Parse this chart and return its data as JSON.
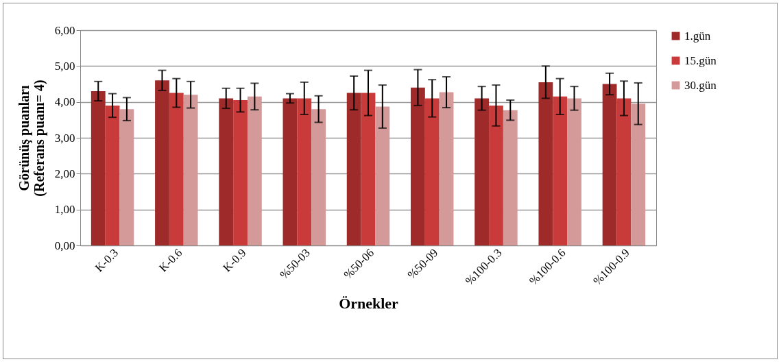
{
  "chart_data": {
    "type": "bar",
    "xlabel": "Örnekler",
    "ylabel": "Görünüş puanları\n(Referans puanı= 4)",
    "categories": [
      "K-0.3",
      "K-0.6",
      "K-0.9",
      "%50-03",
      "%50-06",
      "%50-09",
      "%100-0.3",
      "%100-0.6",
      "%100-0.9"
    ],
    "series": [
      {
        "name": "1.gün",
        "color": "#9e2a2a",
        "values": [
          4.3,
          4.6,
          4.1,
          4.1,
          4.25,
          4.4,
          4.1,
          4.55,
          4.5
        ],
        "errors": [
          0.27,
          0.28,
          0.28,
          0.13,
          0.47,
          0.5,
          0.33,
          0.45,
          0.3
        ]
      },
      {
        "name": "15.gün",
        "color": "#c93a3a",
        "values": [
          3.9,
          4.25,
          4.05,
          4.1,
          4.25,
          4.1,
          3.9,
          4.15,
          4.1
        ],
        "errors": [
          0.33,
          0.4,
          0.33,
          0.45,
          0.63,
          0.52,
          0.57,
          0.5,
          0.48
        ]
      },
      {
        "name": "30.gün",
        "color": "#d49a9a",
        "values": [
          3.8,
          4.2,
          4.15,
          3.8,
          3.87,
          4.27,
          3.77,
          4.1,
          3.95
        ],
        "errors": [
          0.32,
          0.37,
          0.37,
          0.37,
          0.6,
          0.43,
          0.28,
          0.33,
          0.58
        ]
      }
    ],
    "ylim": [
      0,
      6
    ],
    "yticks": [
      {
        "value": 0,
        "label": "0,00"
      },
      {
        "value": 1,
        "label": "1,00"
      },
      {
        "value": 2,
        "label": "2,00"
      },
      {
        "value": 3,
        "label": "3,00"
      },
      {
        "value": 4,
        "label": "4,00"
      },
      {
        "value": 5,
        "label": "5,00"
      },
      {
        "value": 6,
        "label": "6,00"
      }
    ],
    "grid": "y",
    "legend": "right"
  }
}
